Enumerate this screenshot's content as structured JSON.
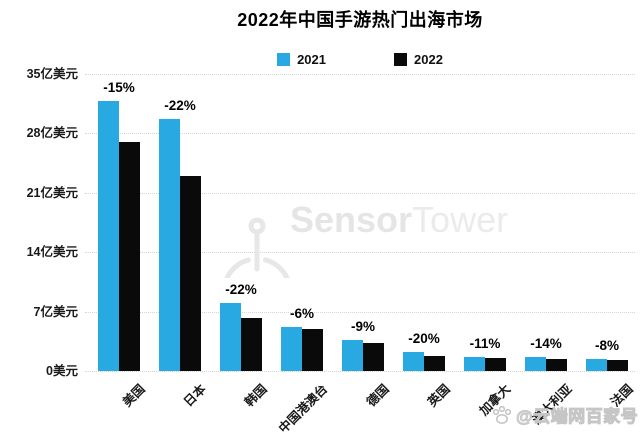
{
  "header": {
    "title": "2022年中国手游热门出海市场"
  },
  "chart_data": {
    "type": "bar",
    "title": "2022年中国手游热门出海市场",
    "categories": [
      "美国",
      "日本",
      "韩国",
      "中国港澳台",
      "德国",
      "英国",
      "加拿大",
      "澳大利亚",
      "法国"
    ],
    "series": [
      {
        "name": "2021",
        "color": "#28a9e2",
        "values": [
          31.8,
          29.7,
          8.0,
          5.2,
          3.6,
          2.2,
          1.7,
          1.6,
          1.4
        ]
      },
      {
        "name": "2022",
        "color": "#0a0a0a",
        "values": [
          27.0,
          23.0,
          6.2,
          4.9,
          3.3,
          1.8,
          1.5,
          1.4,
          1.3
        ]
      }
    ],
    "bar_labels": [
      "-15%",
      "-22%",
      "-22%",
      "-6%",
      "-9%",
      "-20%",
      "-11%",
      "-14%",
      "-8%"
    ],
    "ytick_values": [
      0,
      7,
      14,
      21,
      28,
      35
    ],
    "ytick_labels": [
      "0美元",
      "7亿美元",
      "14亿美元",
      "21亿美元",
      "28亿美元",
      "35亿美元"
    ],
    "ylim": [
      0,
      35
    ],
    "unit": "亿美元",
    "grid": "dotted-horizontal",
    "legend_position": "top-center"
  },
  "colors": {
    "series_2021": "#28a9e2",
    "series_2022": "#0a0a0a",
    "gridline": "#d4d4d4",
    "watermark_gray": "#e7e7e7"
  },
  "watermarks": {
    "brand": {
      "bold": "Sensor",
      "light": "Tower"
    },
    "publisher": {
      "icon": "baidu-paw-icon",
      "text": "@云端网百家号"
    }
  }
}
